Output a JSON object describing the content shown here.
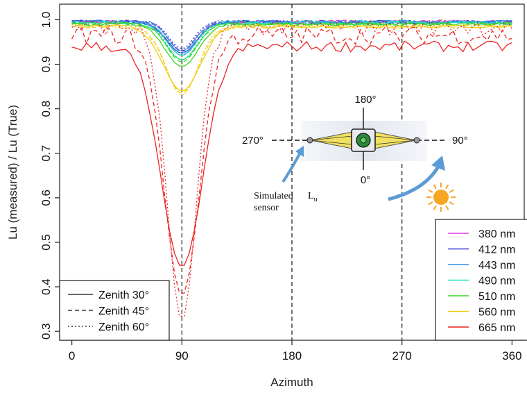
{
  "chart_data": {
    "type": "line",
    "title": "",
    "xlabel": "Azimuth",
    "ylabel": "Lu (measured) / Lu (True)",
    "xlim": [
      -10,
      370
    ],
    "ylim": [
      0.28,
      1.035
    ],
    "x_ticks": [
      0,
      90,
      180,
      270,
      360
    ],
    "y_ticks": [
      0.3,
      0.4,
      0.5,
      0.6,
      0.7,
      0.8,
      0.9,
      1.0
    ],
    "x_tick_labels": [
      "0",
      "90",
      "180",
      "270",
      "360"
    ],
    "y_tick_labels": [
      "0.3",
      "0.4",
      "0.5",
      "0.6",
      "0.7",
      "0.8",
      "0.9",
      "1.0"
    ],
    "vlines": [
      90,
      180,
      270
    ],
    "grid": false,
    "wavelength_legend": {
      "placement": "bottom-right",
      "entries": [
        {
          "label": "380 nm",
          "color": "#e040e0"
        },
        {
          "label": "412 nm",
          "color": "#3a3ad8"
        },
        {
          "label": "443 nm",
          "color": "#2f8fe8"
        },
        {
          "label": "490 nm",
          "color": "#20e0b8"
        },
        {
          "label": "510 nm",
          "color": "#36d61e"
        },
        {
          "label": "560 nm",
          "color": "#f2cc10"
        },
        {
          "label": "665 nm",
          "color": "#ee2222"
        }
      ]
    },
    "linestyle_legend": {
      "placement": "bottom-left",
      "entries": [
        {
          "label": "Zenith 30°",
          "style": "solid"
        },
        {
          "label": "Zenith 45°",
          "style": "dashed"
        },
        {
          "label": "Zenith 60°",
          "style": "dotted"
        }
      ]
    },
    "series_params": [
      {
        "wavelength": "380 nm",
        "color": "#e040e0",
        "base": 0.995,
        "minima": [
          0.925,
          0.93,
          0.93
        ],
        "widths": [
          17,
          15,
          14
        ]
      },
      {
        "wavelength": "412 nm",
        "color": "#3a3ad8",
        "base": 0.995,
        "minima": [
          0.925,
          0.93,
          0.935
        ],
        "widths": [
          17,
          15,
          14
        ]
      },
      {
        "wavelength": "443 nm",
        "color": "#2f8fe8",
        "base": 0.995,
        "minima": [
          0.92,
          0.928,
          0.93
        ],
        "widths": [
          17,
          15,
          14
        ]
      },
      {
        "wavelength": "490 nm",
        "color": "#20e0b8",
        "base": 0.993,
        "minima": [
          0.91,
          0.92,
          0.925
        ],
        "widths": [
          18,
          16,
          15
        ]
      },
      {
        "wavelength": "510 nm",
        "color": "#36d61e",
        "base": 0.99,
        "minima": [
          0.895,
          0.905,
          0.91
        ],
        "widths": [
          19,
          17,
          16
        ]
      },
      {
        "wavelength": "560 nm",
        "color": "#f2cc10",
        "base": 0.985,
        "minima": [
          0.84,
          0.835,
          0.83
        ],
        "widths": [
          21,
          19,
          18
        ]
      },
      {
        "wavelength": "665 nm",
        "color": "#ee2222",
        "base": [
          0.94,
          0.965,
          0.985
        ],
        "minima": [
          0.445,
          0.38,
          0.325
        ],
        "widths": [
          24,
          20,
          17
        ]
      }
    ],
    "inset": {
      "angle_labels": {
        "top": "180°",
        "bottom": "0°",
        "left": "270°",
        "right": "90°"
      },
      "sensor_label_line1": "Simulated",
      "sensor_label_line2": "sensor",
      "lu_label": "L",
      "lu_subscript": "u"
    }
  }
}
